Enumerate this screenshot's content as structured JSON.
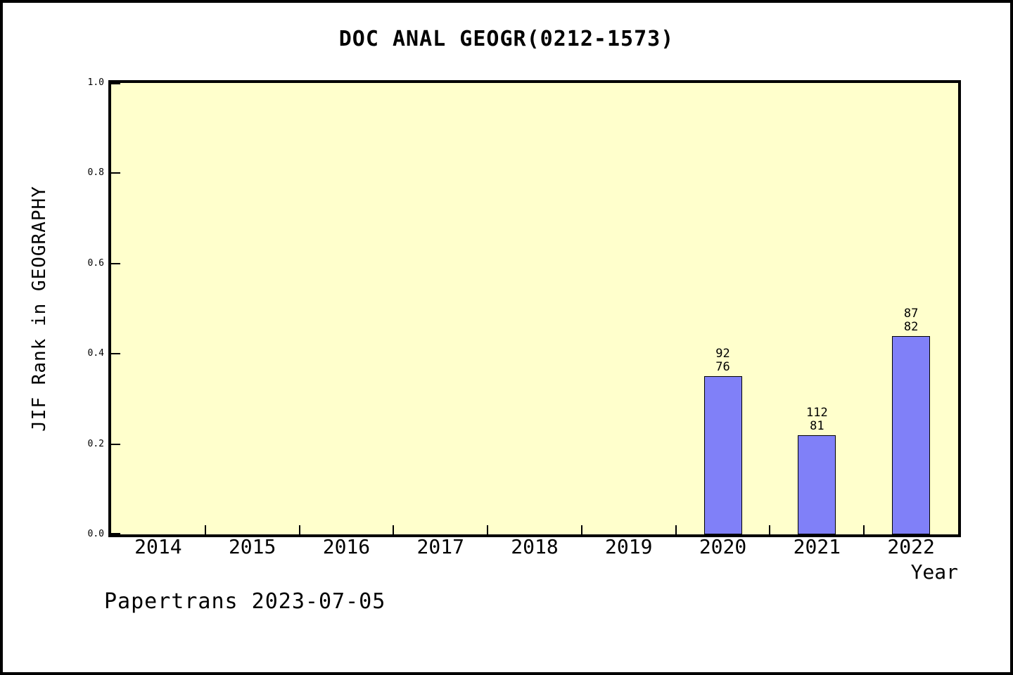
{
  "chart_data": {
    "type": "bar",
    "title": "DOC ANAL GEOGR(0212-1573)",
    "xlabel": "Year",
    "ylabel": "JIF Rank in GEOGRAPHY",
    "categories": [
      "2014",
      "2015",
      "2016",
      "2017",
      "2018",
      "2019",
      "2020",
      "2021",
      "2022"
    ],
    "values": [
      null,
      null,
      null,
      null,
      null,
      null,
      0.35,
      0.22,
      0.44
    ],
    "bar_labels": [
      null,
      null,
      null,
      null,
      null,
      null,
      [
        "92",
        "76"
      ],
      [
        "112",
        "81"
      ],
      [
        "87",
        "82"
      ]
    ],
    "ylim": [
      0.0,
      1.0
    ],
    "ytick_labels": [
      "0.0",
      "0.2",
      "0.4",
      "0.6",
      "0.8",
      "1.0"
    ],
    "grid": false,
    "legend": null,
    "colors": {
      "plot_background": "#ffffcc",
      "bar_fill": "#8080f8",
      "bar_border": "#000000",
      "axis": "#000000",
      "text": "#000000",
      "page_background": "#ffffff"
    }
  },
  "footer": {
    "text": "Papertrans 2023-07-05"
  }
}
